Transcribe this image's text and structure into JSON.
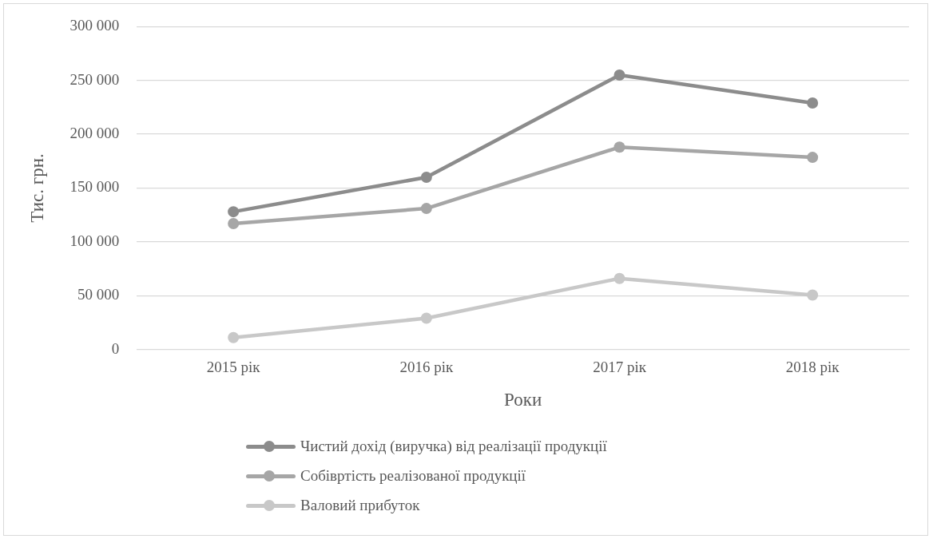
{
  "chart_data": {
    "type": "line",
    "xlabel": "Роки",
    "ylabel": "Тис. грн.",
    "categories": [
      "2015 рік",
      "2016 рік",
      "2017 рік",
      "2018 рік"
    ],
    "series": [
      {
        "name": "Чистий дохід (виручка) від реалізації продукції",
        "color": "#8c8c8c",
        "values": [
          128000,
          160000,
          255000,
          229000
        ]
      },
      {
        "name": "Собівртість реалізованої продукції",
        "color": "#a6a6a6",
        "values": [
          117000,
          131000,
          188000,
          178500
        ]
      },
      {
        "name": "Валовий прибуток",
        "color": "#c8c8c8",
        "values": [
          11000,
          29000,
          66000,
          50500
        ]
      }
    ],
    "ylim": [
      0,
      300000
    ],
    "yticks": [
      0,
      50000,
      100000,
      150000,
      200000,
      250000,
      300000
    ],
    "grid": "y",
    "legend": "bottom",
    "marker": "circle",
    "line_style": "solid"
  }
}
